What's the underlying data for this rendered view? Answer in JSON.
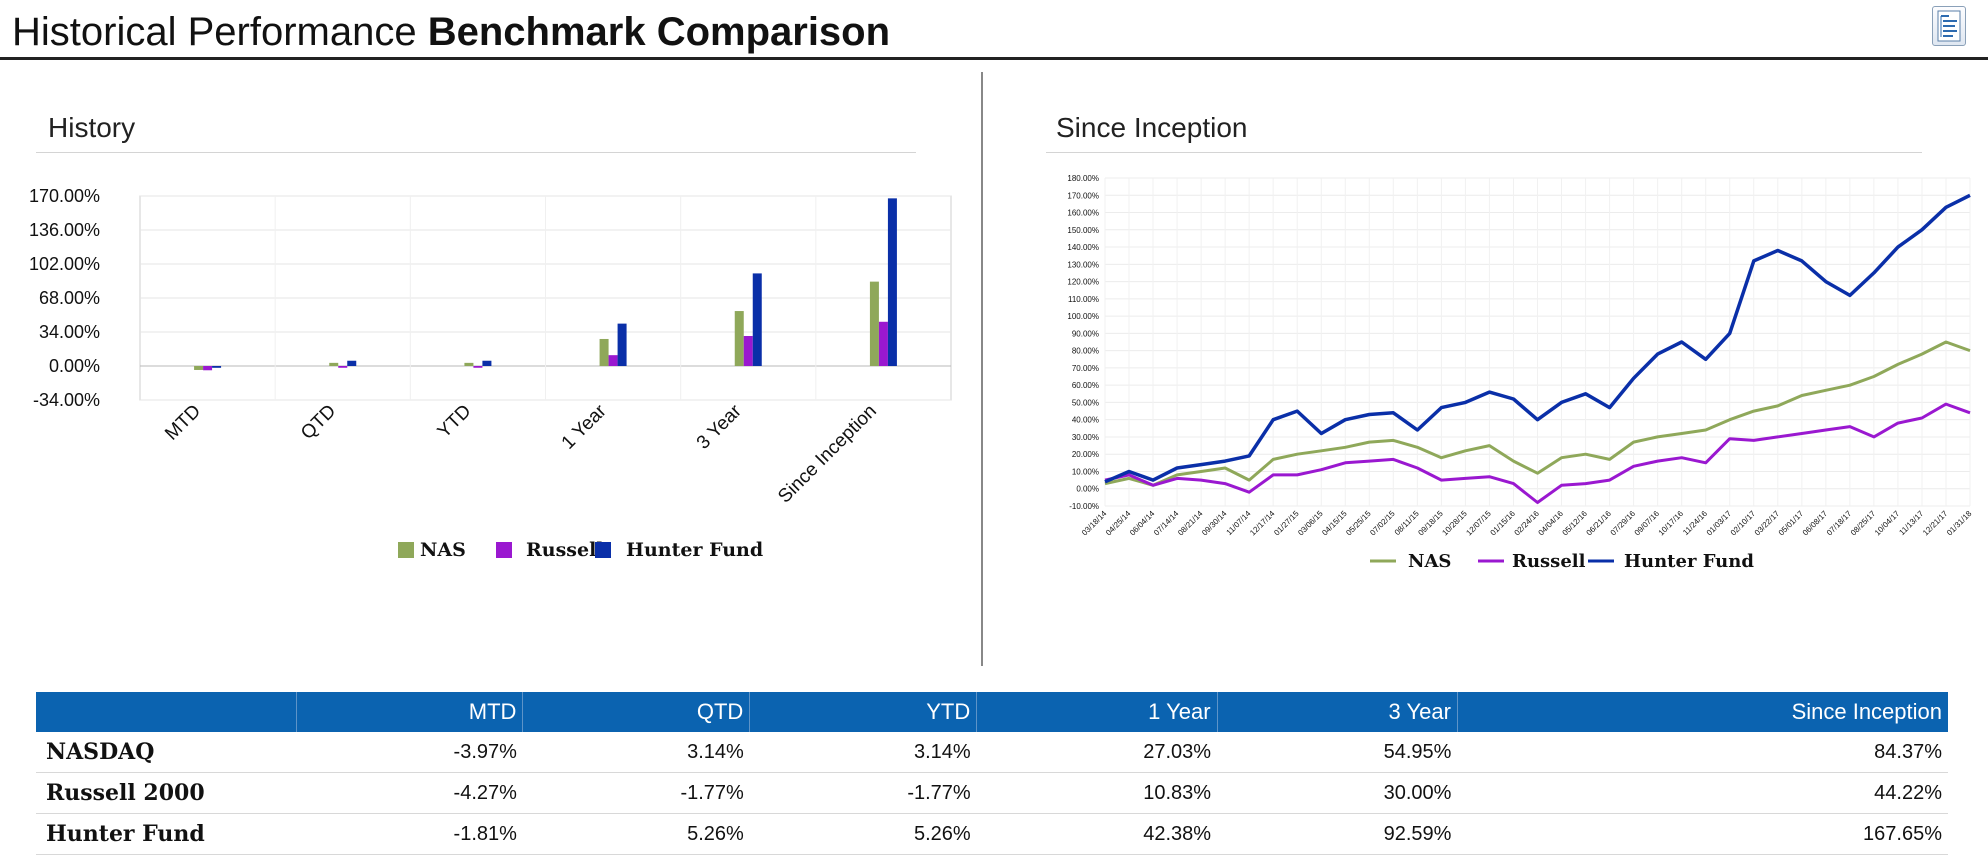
{
  "header": {
    "title_light": "Historical Performance",
    "title_bold": "Benchmark Comparison",
    "export_icon": "spreadsheet-export-icon"
  },
  "history": {
    "title": "History",
    "legend": [
      "NAS",
      "Russell",
      "Hunter Fund"
    ]
  },
  "since_inception": {
    "title": "Since Inception",
    "legend": [
      "NAS",
      "Russell",
      "Hunter Fund"
    ]
  },
  "colors": {
    "nas": "#8fa85a",
    "russell": "#9a18d0",
    "hunter": "#0a2fa8",
    "header_bg": "#0b63b0"
  },
  "table": {
    "columns": [
      "",
      "MTD",
      "QTD",
      "YTD",
      "1 Year",
      "3 Year",
      "Since Inception"
    ],
    "rows": [
      {
        "label": "NASDAQ",
        "values": [
          "-3.97%",
          "3.14%",
          "3.14%",
          "27.03%",
          "54.95%",
          "84.37%"
        ]
      },
      {
        "label": "Russell 2000",
        "values": [
          "-4.27%",
          "-1.77%",
          "-1.77%",
          "10.83%",
          "30.00%",
          "44.22%"
        ]
      },
      {
        "label": "Hunter Fund",
        "values": [
          "-1.81%",
          "5.26%",
          "5.26%",
          "42.38%",
          "92.59%",
          "167.65%"
        ]
      }
    ]
  },
  "chart_data": [
    {
      "type": "bar",
      "title": "History",
      "categories": [
        "MTD",
        "QTD",
        "YTD",
        "1 Year",
        "3 Year",
        "Since Inception"
      ],
      "series": [
        {
          "name": "NAS",
          "values": [
            -3.97,
            3.14,
            3.14,
            27.03,
            54.95,
            84.37
          ]
        },
        {
          "name": "Russell",
          "values": [
            -4.27,
            -1.77,
            -1.77,
            10.83,
            30.0,
            44.22
          ]
        },
        {
          "name": "Hunter Fund",
          "values": [
            -1.81,
            5.26,
            5.26,
            42.38,
            92.59,
            167.65
          ]
        }
      ],
      "ylim": [
        -34,
        170
      ],
      "yticks": [
        "170.00%",
        "136.00%",
        "102.00%",
        "68.00%",
        "34.00%",
        "0.00%",
        "-34.00%"
      ],
      "ytick_values": [
        170,
        136,
        102,
        68,
        34,
        0,
        -34
      ],
      "grid": true,
      "legend_position": "bottom"
    },
    {
      "type": "line",
      "title": "Since Inception",
      "x": [
        "03/18/14",
        "04/25/14",
        "06/04/14",
        "07/14/14",
        "08/21/14",
        "09/30/14",
        "11/07/14",
        "12/17/14",
        "01/27/15",
        "03/06/15",
        "04/15/15",
        "05/25/15",
        "07/02/15",
        "08/11/15",
        "09/18/15",
        "10/28/15",
        "12/07/15",
        "01/15/16",
        "02/24/16",
        "04/04/16",
        "05/12/16",
        "06/21/16",
        "07/29/16",
        "09/07/16",
        "10/17/16",
        "11/24/16",
        "01/03/17",
        "02/10/17",
        "03/22/17",
        "05/01/17",
        "06/08/17",
        "07/18/17",
        "08/25/17",
        "10/04/17",
        "11/13/17",
        "12/21/17",
        "01/31/18"
      ],
      "series": [
        {
          "name": "NAS",
          "values": [
            3,
            6,
            2,
            8,
            10,
            12,
            5,
            17,
            20,
            22,
            24,
            27,
            28,
            24,
            18,
            22,
            25,
            16,
            9,
            18,
            20,
            17,
            27,
            30,
            32,
            34,
            40,
            45,
            48,
            54,
            57,
            60,
            65,
            72,
            78,
            85,
            80
          ]
        },
        {
          "name": "Russell",
          "values": [
            5,
            8,
            2,
            6,
            5,
            3,
            -2,
            8,
            8,
            11,
            15,
            16,
            17,
            12,
            5,
            6,
            7,
            3,
            -8,
            2,
            3,
            5,
            13,
            16,
            18,
            15,
            29,
            28,
            30,
            32,
            34,
            36,
            30,
            38,
            41,
            49,
            44
          ]
        },
        {
          "name": "Hunter Fund",
          "values": [
            4,
            10,
            5,
            12,
            14,
            16,
            19,
            40,
            45,
            32,
            40,
            43,
            44,
            34,
            47,
            50,
            56,
            52,
            40,
            50,
            55,
            47,
            64,
            78,
            85,
            75,
            90,
            132,
            138,
            132,
            120,
            112,
            125,
            140,
            150,
            163,
            170
          ]
        }
      ],
      "ylim": [
        -10,
        180
      ],
      "yticks": [
        "180.00%",
        "170.00%",
        "160.00%",
        "150.00%",
        "140.00%",
        "130.00%",
        "120.00%",
        "110.00%",
        "100.00%",
        "90.00%",
        "80.00%",
        "70.00%",
        "60.00%",
        "50.00%",
        "40.00%",
        "30.00%",
        "20.00%",
        "10.00%",
        "0.00%",
        "-10.00%"
      ],
      "ytick_values": [
        180,
        170,
        160,
        150,
        140,
        130,
        120,
        110,
        100,
        90,
        80,
        70,
        60,
        50,
        40,
        30,
        20,
        10,
        0,
        -10
      ],
      "grid": true,
      "legend_position": "bottom"
    }
  ]
}
